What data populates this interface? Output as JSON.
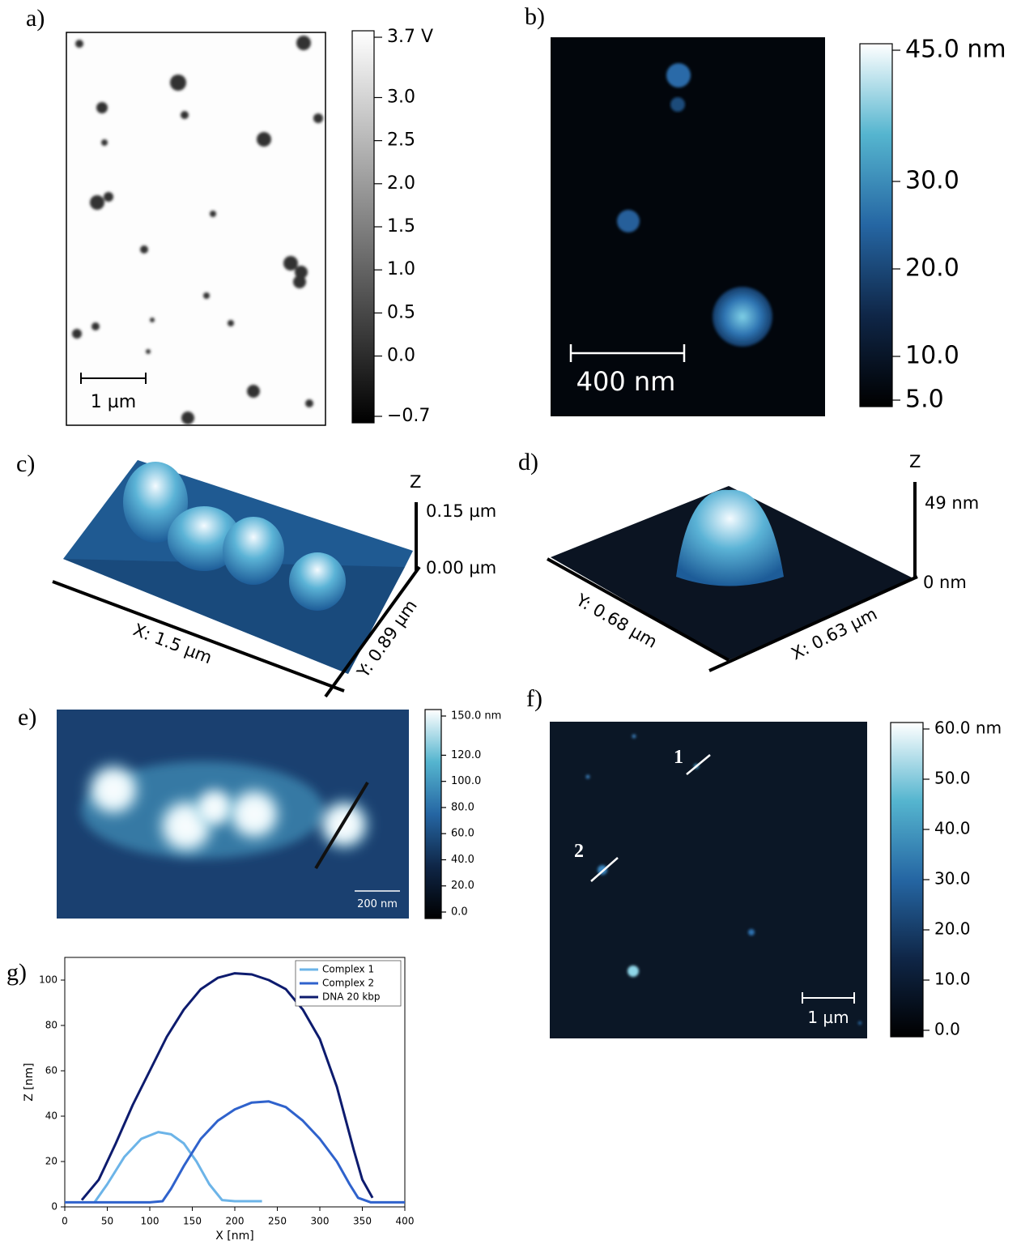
{
  "panels": {
    "a": {
      "label": "a)",
      "scale_bar": "1 µm",
      "colorbar": {
        "lim": [
          -0.7,
          3.7
        ],
        "ticks": [
          {
            "value": 3.7,
            "label": "3.7 V"
          },
          {
            "value": 3,
            "label": "3.0"
          },
          2.5,
          {
            "value": 2,
            "label": "2.0"
          },
          1.5,
          {
            "value": 1,
            "label": "1.0"
          },
          0.5,
          {
            "value": 0,
            "label": "0.0"
          },
          {
            "value": -0.7,
            "label": "−0.7"
          }
        ]
      }
    },
    "b": {
      "label": "b)",
      "scale_bar": "400 nm",
      "colorbar": {
        "lim": [
          5,
          45
        ],
        "ticks": [
          {
            "value": 45,
            "label": "45.0 nm"
          },
          {
            "value": 30,
            "label": "30.0"
          },
          {
            "value": 20,
            "label": "20.0"
          },
          {
            "value": 10,
            "label": "10.0"
          },
          {
            "value": 5,
            "label": "5.0"
          }
        ]
      }
    },
    "c": {
      "label": "c)",
      "z_axis": "Z",
      "z_top": "0.15 µm",
      "z_bottom": "0.00 µm",
      "x_axis": "X: 1.5 µm",
      "y_axis": "Y: 0.89 µm"
    },
    "d": {
      "label": "d)",
      "z_axis": "Z",
      "z_top": "49 nm",
      "z_bottom": "0 nm",
      "y_axis": "Y: 0.68 µm",
      "x_axis": "X: 0.63 µm"
    },
    "e": {
      "label": "e)",
      "scale_bar": "200 nm",
      "colorbar": {
        "lim": [
          0,
          150
        ],
        "ticks": [
          {
            "value": 150,
            "label": "150.0 nm"
          },
          {
            "value": 120,
            "label": "120.0"
          },
          {
            "value": 100,
            "label": "100.0"
          },
          {
            "value": 80,
            "label": "80.0"
          },
          {
            "value": 60,
            "label": "60.0"
          },
          {
            "value": 40,
            "label": "40.0"
          },
          {
            "value": 20,
            "label": "20.0"
          },
          {
            "value": 0,
            "label": "0.0"
          }
        ]
      }
    },
    "f": {
      "label": "f)",
      "scale_bar": "1 µm",
      "markers": [
        "1",
        "2"
      ],
      "colorbar": {
        "lim": [
          0,
          60
        ],
        "ticks": [
          {
            "value": 60,
            "label": "60.0 nm"
          },
          {
            "value": 50,
            "label": "50.0"
          },
          {
            "value": 40,
            "label": "40.0"
          },
          {
            "value": 30,
            "label": "30.0"
          },
          {
            "value": 20,
            "label": "20.0"
          },
          {
            "value": 10,
            "label": "10.0"
          },
          {
            "value": 0,
            "label": "0.0"
          }
        ]
      }
    },
    "g": {
      "label": "g)"
    }
  },
  "chart_data": {
    "type": "line",
    "x_label": "X [nm]",
    "y_label": "Z [nm]",
    "xlim": [
      0,
      400
    ],
    "xticks": [
      0,
      50,
      100,
      150,
      200,
      250,
      300,
      350,
      400
    ],
    "ylim": [
      0,
      110
    ],
    "yticks": [
      0,
      20,
      40,
      60,
      80,
      100
    ],
    "legend": "upper right",
    "series": [
      {
        "name": "Complex 1",
        "color": "#6cb4e8",
        "x": [
          35,
          50,
          70,
          90,
          110,
          125,
          140,
          155,
          170,
          185,
          200,
          232
        ],
        "values": [
          2,
          10,
          22,
          30,
          33,
          32,
          28,
          20,
          10,
          3,
          2.5,
          2.5
        ]
      },
      {
        "name": "Complex 2",
        "color": "#2f62cc",
        "x": [
          0,
          50,
          100,
          115,
          125,
          140,
          160,
          180,
          200,
          220,
          240,
          260,
          280,
          300,
          320,
          335,
          345,
          360,
          400
        ],
        "values": [
          2,
          2,
          2,
          2.5,
          8,
          18,
          30,
          38,
          43,
          46,
          46.5,
          44,
          38,
          30,
          20,
          10,
          4,
          2,
          2
        ]
      },
      {
        "name": "DNA 20 kbp",
        "color": "#0d1b6e",
        "x": [
          20,
          40,
          60,
          80,
          100,
          120,
          140,
          160,
          180,
          200,
          220,
          240,
          260,
          280,
          300,
          320,
          340,
          350,
          362
        ],
        "values": [
          3,
          12,
          28,
          45,
          60,
          75,
          87,
          96,
          101,
          103,
          102.5,
          100,
          96,
          87,
          74,
          53,
          25,
          12,
          4
        ]
      }
    ]
  }
}
